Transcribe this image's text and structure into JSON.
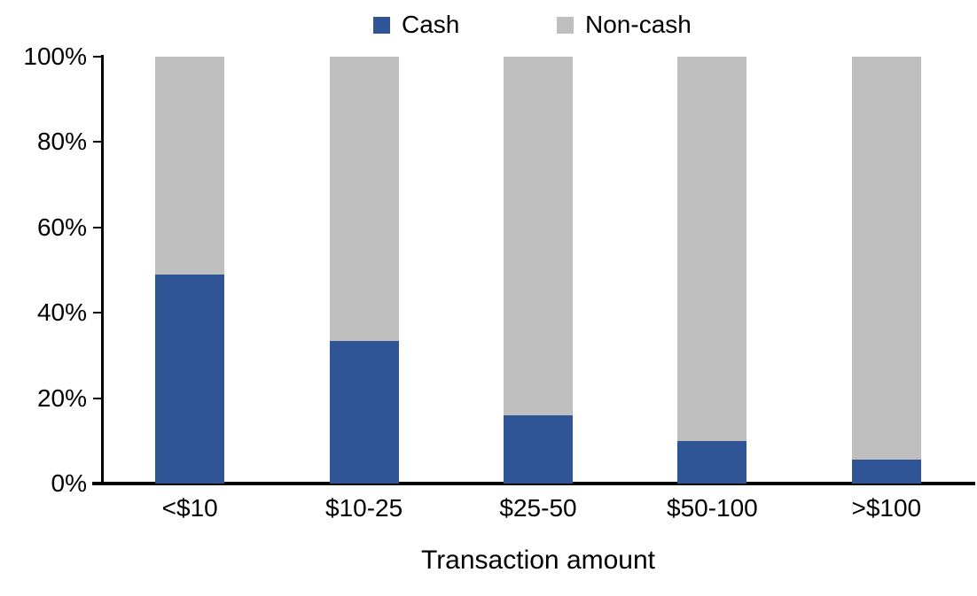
{
  "chart_data": {
    "type": "bar",
    "stacked": true,
    "stack_unit": "percent",
    "title": "",
    "xlabel": "Transaction amount",
    "ylabel": "",
    "ylim": [
      0,
      100
    ],
    "yticks": [
      0,
      20,
      40,
      60,
      80,
      100
    ],
    "ytick_labels": [
      "0%",
      "20%",
      "40%",
      "60%",
      "80%",
      "100%"
    ],
    "categories": [
      "<$10",
      "$10-25",
      "$25-50",
      "$50-100",
      ">$100"
    ],
    "series": [
      {
        "name": "Cash",
        "color": "#2F5597",
        "values": [
          49,
          33.5,
          16,
          10,
          5.5
        ]
      },
      {
        "name": "Non-cash",
        "color": "#BFBFBF",
        "values": [
          51,
          66.5,
          84,
          90,
          94.5
        ]
      }
    ],
    "legend_position": "top-center",
    "grid": false,
    "axis_color": "#000000",
    "background_color": "#FFFFFF"
  }
}
